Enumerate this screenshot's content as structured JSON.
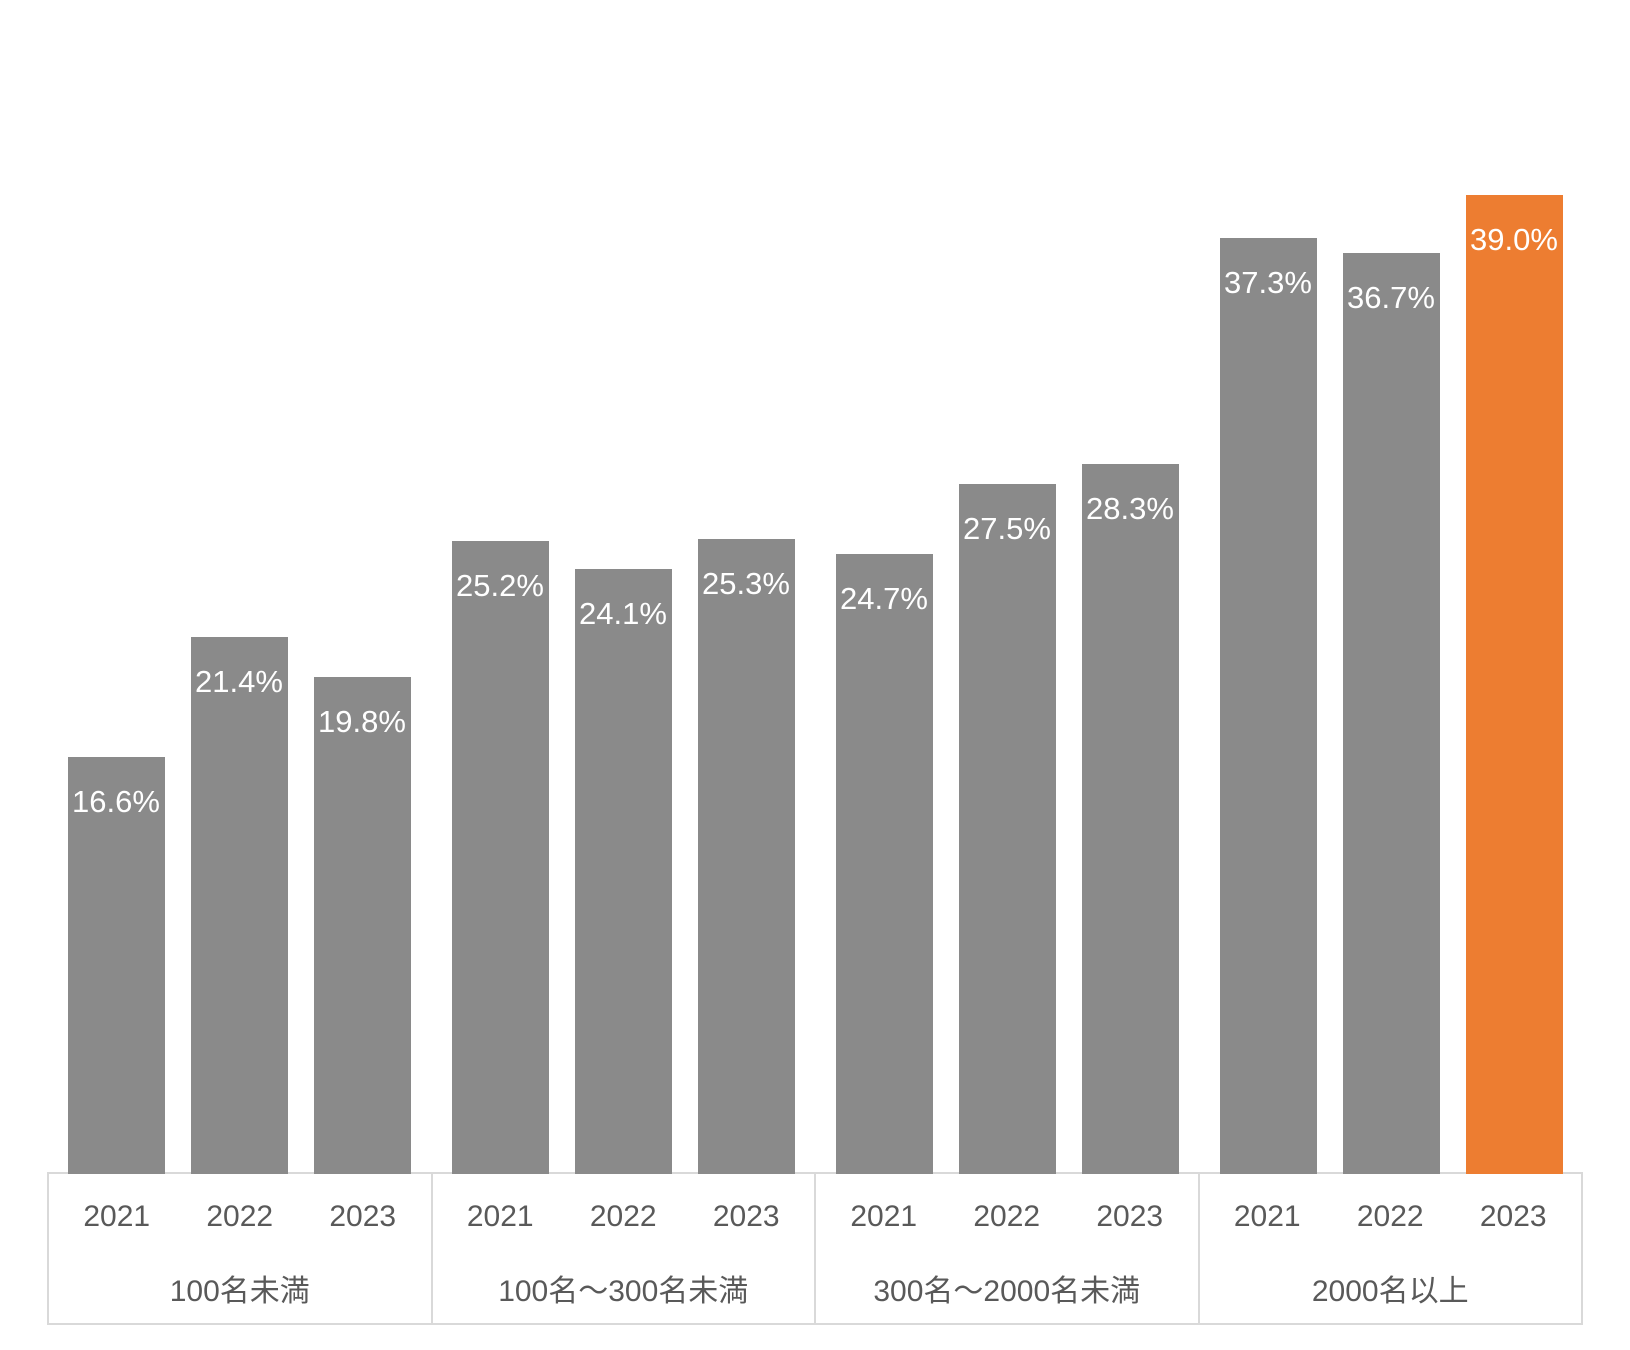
{
  "chart_data": {
    "type": "bar",
    "title": "",
    "xlabel": "",
    "ylabel": "",
    "unit": "%",
    "grid": false,
    "legend": false,
    "ylim": [
      0,
      46.5
    ],
    "years": [
      "2021",
      "2022",
      "2023"
    ],
    "categories": [
      "100名未満",
      "100名〜300名未満",
      "300名〜2000名未満",
      "2000名以上"
    ],
    "groups": [
      {
        "category": "100名未満",
        "values": [
          16.6,
          21.4,
          19.8
        ],
        "labels": [
          "16.6%",
          "21.4%",
          "19.8%"
        ]
      },
      {
        "category": "100名〜300名未満",
        "values": [
          25.2,
          24.1,
          25.3
        ],
        "labels": [
          "25.2%",
          "24.1%",
          "25.3%"
        ]
      },
      {
        "category": "300名〜2000名未満",
        "values": [
          24.7,
          27.5,
          28.3
        ],
        "labels": [
          "24.7%",
          "27.5%",
          "28.3%"
        ]
      },
      {
        "category": "2000名以上",
        "values": [
          37.3,
          36.7,
          39.0
        ],
        "labels": [
          "37.3%",
          "36.7%",
          "39.0%"
        ]
      }
    ],
    "highlight": {
      "group_index": 3,
      "bar_index": 2
    },
    "colors": {
      "bar": "#8a8a8a",
      "highlight": "#ed7d31",
      "value_label_text": "#ffffff",
      "axis_text": "#595959",
      "axis_border": "#d9d9d9",
      "background": "#ffffff"
    }
  }
}
